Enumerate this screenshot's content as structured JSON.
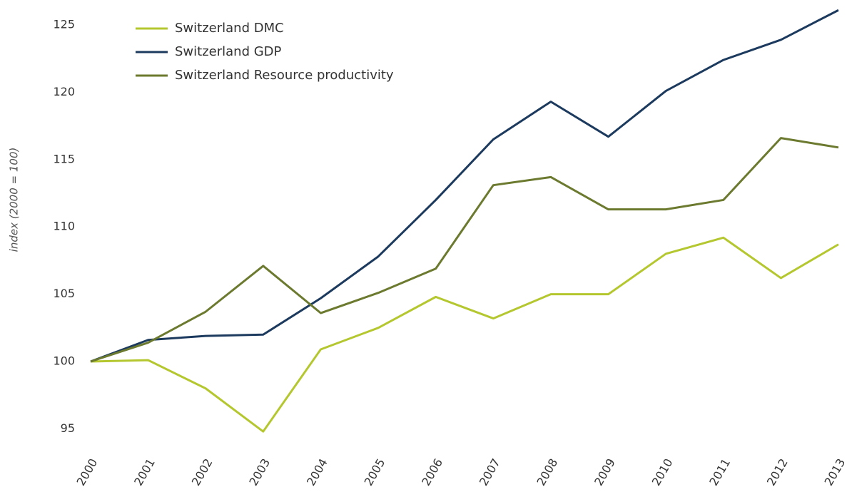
{
  "chart_data": {
    "type": "line",
    "y_label": "index (2000 = 100)",
    "categories": [
      "2000",
      "2001",
      "2002",
      "2003",
      "2004",
      "2005",
      "2006",
      "2007",
      "2008",
      "2009",
      "2010",
      "2011",
      "2012",
      "2013"
    ],
    "series": [
      {
        "name": "Switzerland DMC",
        "color": "#b5c72f",
        "values": [
          100,
          100.1,
          98,
          94.8,
          100.9,
          102.5,
          104.8,
          103.2,
          105,
          105,
          108,
          109.2,
          106.2,
          108.7
        ]
      },
      {
        "name": "Switzerland GDP",
        "color": "#1c3a5e",
        "values": [
          100,
          101.6,
          101.9,
          102,
          104.7,
          107.8,
          112,
          116.5,
          119.3,
          116.7,
          120.1,
          122.4,
          123.9,
          126.1
        ]
      },
      {
        "name": "Switzerland Resource productivity",
        "color": "#6b7a2e",
        "values": [
          100,
          101.4,
          103.7,
          107.1,
          103.6,
          105.1,
          106.9,
          113.1,
          113.7,
          111.3,
          111.3,
          112,
          116.6,
          115.9
        ]
      }
    ],
    "ylim": [
      93.5,
      126.5
    ],
    "yticks": [
      95,
      100,
      105,
      110,
      115,
      120,
      125
    ],
    "grid": false,
    "legend": "top-left"
  }
}
